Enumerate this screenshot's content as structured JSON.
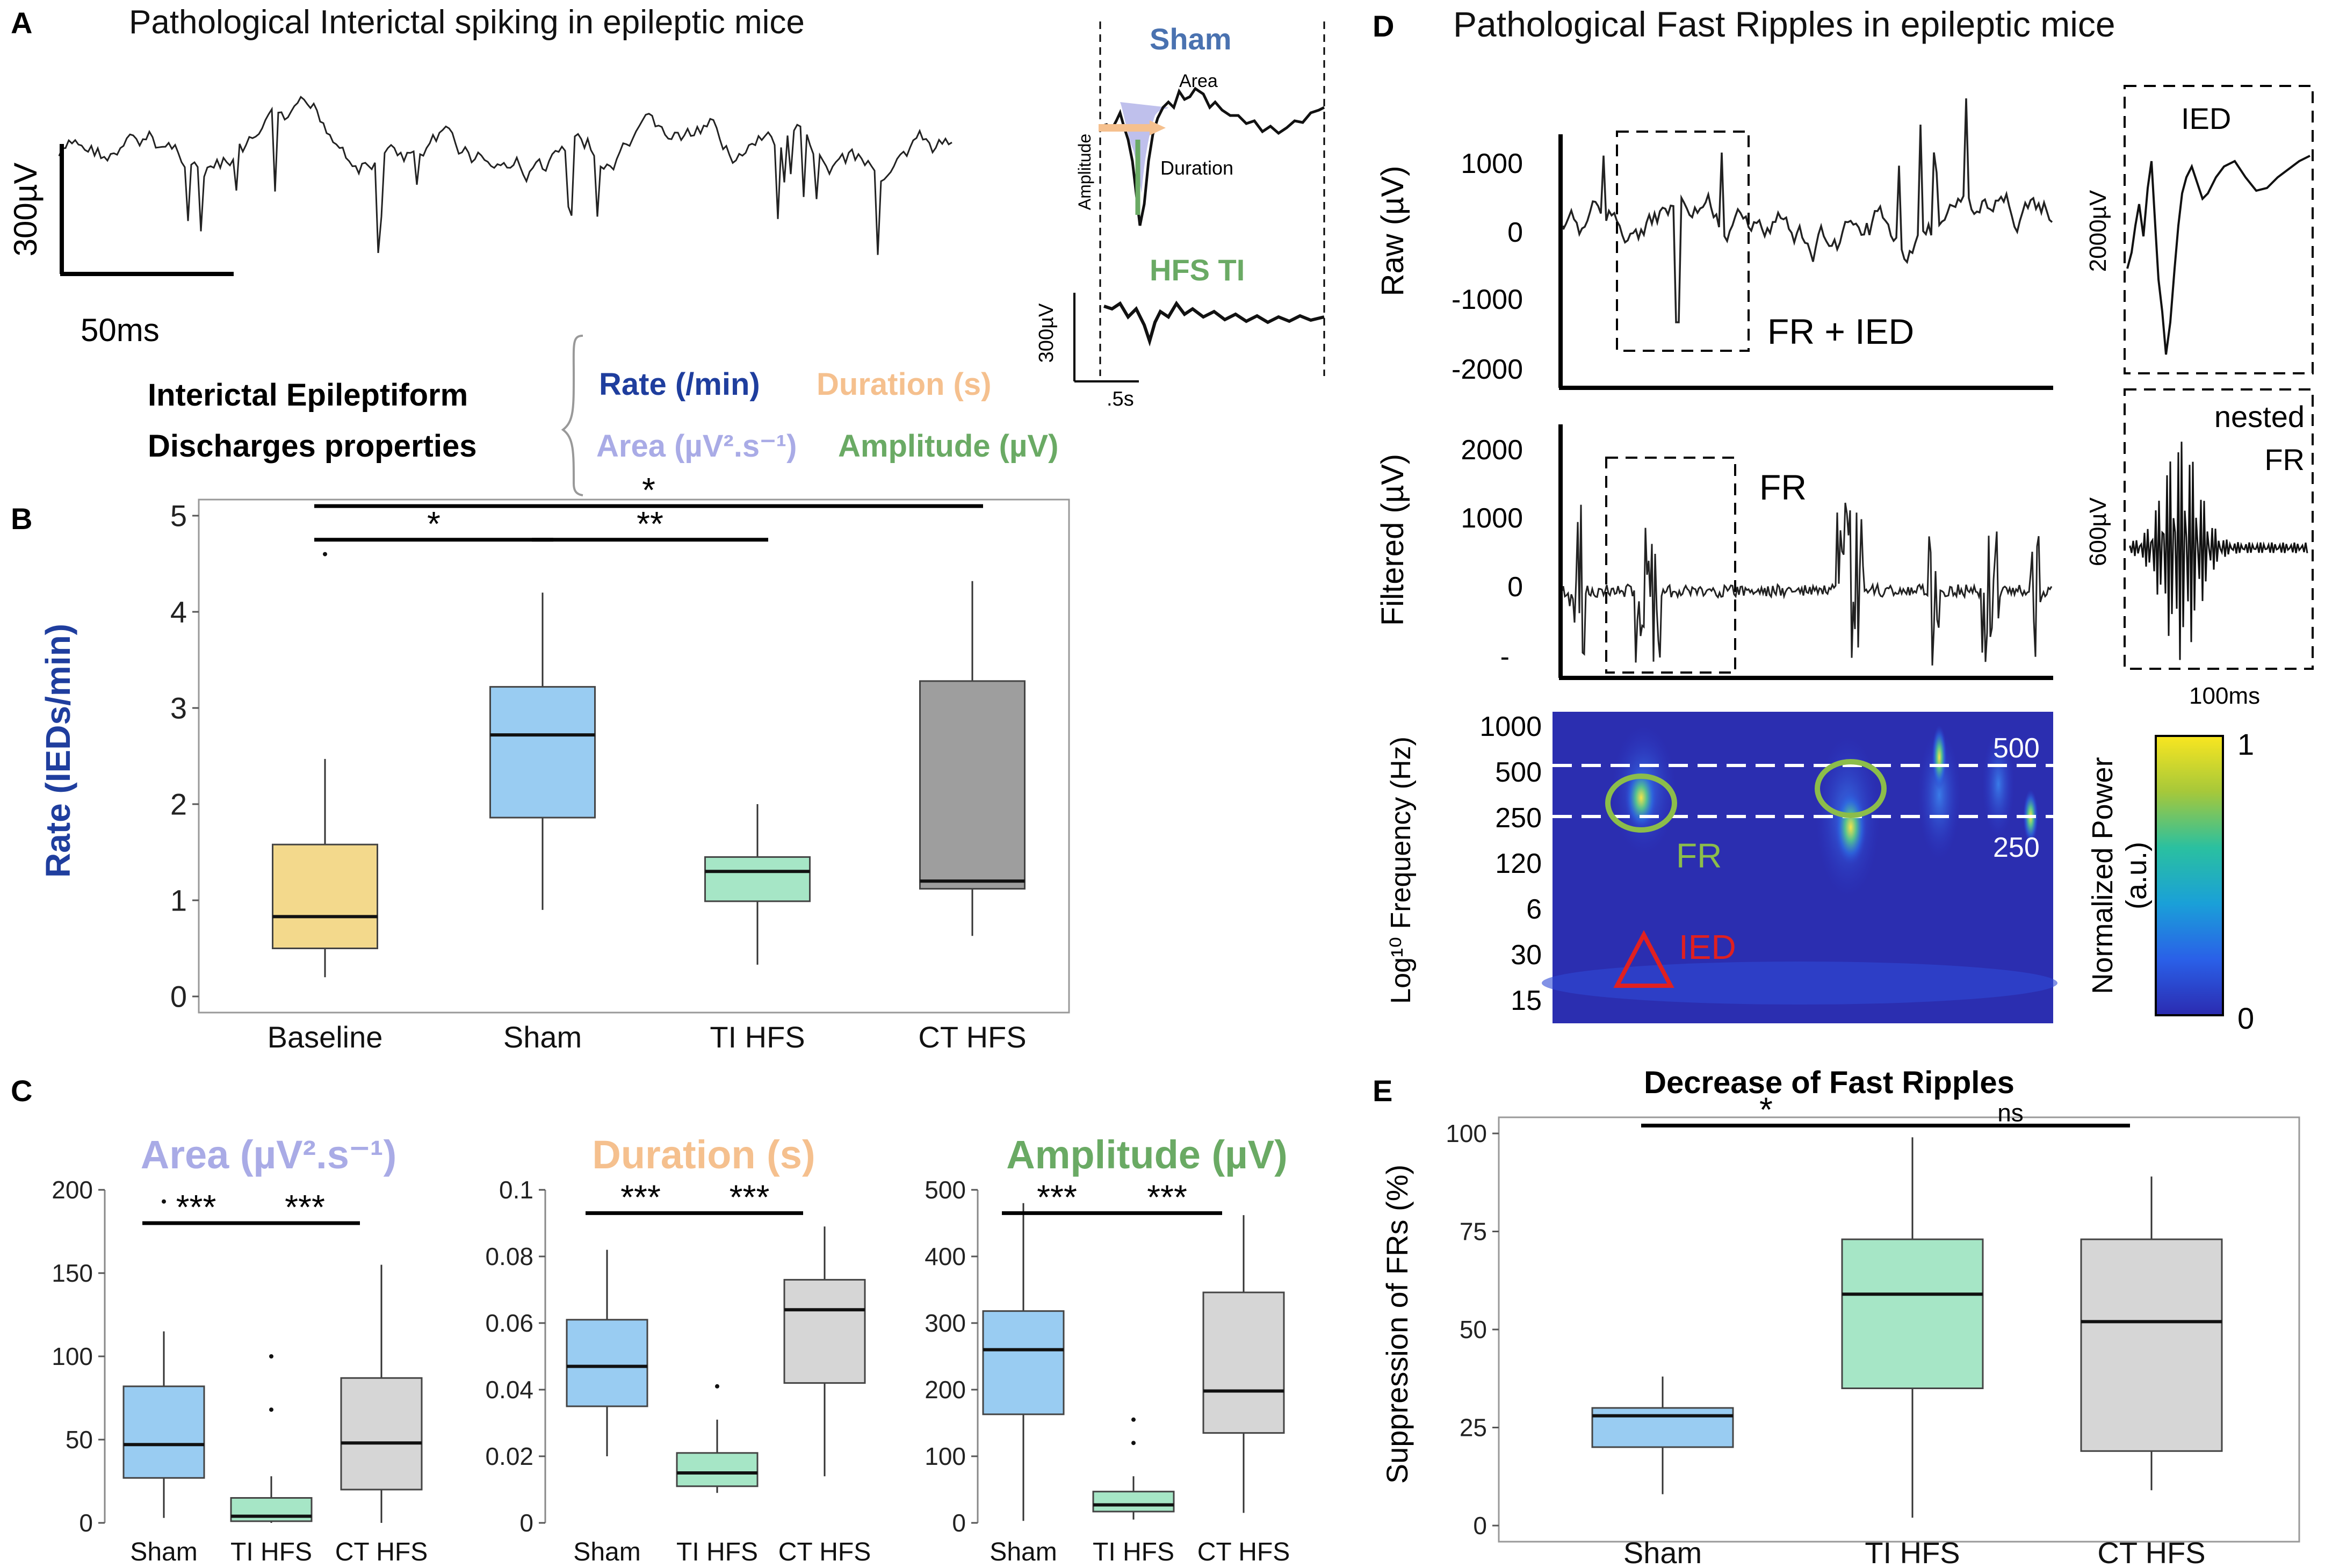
{
  "colors": {
    "sham": "#99ccf2",
    "baseline": "#f3d98c",
    "ti": "#a6e6c6",
    "ct_dark": "#9e9e9e",
    "ct_light": "#d6d6d6",
    "rate": "#1f3e9e",
    "duration": "#f5c08e",
    "area": "#a9abe6",
    "amplitude": "#6aaa64",
    "fr_green": "#8cbd4a",
    "ied_red": "#e02020"
  },
  "panels": {
    "A": "A",
    "B": "B",
    "C": "C",
    "D": "D",
    "E": "E"
  },
  "panelA": {
    "title": "Pathological Interictal spiking in epileptic mice",
    "scale_y": "300µV",
    "scale_x": "50ms",
    "inset_sham": "Sham",
    "inset_area": "Area",
    "inset_duration": "Duration",
    "inset_amplitude": "Amplitude",
    "inset_hfs": "HFS TI",
    "inset_scale_y": "300µV",
    "inset_scale_x": ".5s",
    "ied_line1": "Interictal Epileptiform",
    "ied_line2": "Discharges properties",
    "prop_rate": "Rate (/min)",
    "prop_duration": "Duration (s)",
    "prop_area": "Area (µV².s⁻¹)",
    "prop_amplitude": "Amplitude (µV)"
  },
  "panelD": {
    "title": "Pathological Fast Ripples in epileptic mice",
    "raw_ylabel": "Raw (µV)",
    "raw_ticks": [
      "1000",
      "0",
      "-1000",
      "-2000"
    ],
    "raw_box": "FR + IED",
    "filt_ylabel": "Filtered (µV)",
    "filt_ticks": [
      "2000",
      "1000",
      "0",
      "-"
    ],
    "filt_box": "FR",
    "inset_ied": "IED",
    "inset_ied_scale": "2000µV",
    "inset_fr_1": "nested",
    "inset_fr_2": "FR",
    "inset_fr_scale": "600µV",
    "inset_time": "100ms",
    "spec_ylabel": "Log¹⁰ Frequency (Hz)",
    "spec_ticks": [
      "1000",
      "500",
      "250",
      "120",
      "6",
      "30",
      "15"
    ],
    "line_500": "500",
    "line_250": "250",
    "fr_label": "FR",
    "ied_label": "IED",
    "cbar_label_1": "Normalized Power",
    "cbar_label_2": "(a.u.)",
    "cbar_max": "1",
    "cbar_min": "0"
  },
  "chart_data": [
    {
      "id": "B",
      "type": "box",
      "title": "",
      "ylabel": "Rate (IEDs/min)",
      "ylim": [
        0,
        5
      ],
      "yticks": [
        0,
        1,
        2,
        3,
        4,
        5
      ],
      "categories": [
        "Baseline",
        "Sham",
        "TI HFS",
        "CT HFS"
      ],
      "boxes": [
        {
          "min": 0.2,
          "q1": 0.5,
          "median": 0.83,
          "q3": 1.58,
          "max": 2.47
        },
        {
          "min": 0.9,
          "q1": 1.86,
          "median": 2.72,
          "q3": 3.22,
          "max": 4.2
        },
        {
          "min": 0.33,
          "q1": 0.99,
          "median": 1.3,
          "q3": 1.45,
          "max": 2.0
        },
        {
          "min": 0.63,
          "q1": 1.12,
          "median": 1.2,
          "q3": 3.28,
          "max": 4.32
        }
      ],
      "outliers": [
        {
          "cat": 0,
          "y": 4.6
        }
      ],
      "signif": [
        {
          "from": 0,
          "to": 1,
          "y": 4.75,
          "label": "*"
        },
        {
          "from": 1,
          "to": 2,
          "y": 4.75,
          "label": "**"
        },
        {
          "from": 0,
          "to": 3,
          "y": 5.1,
          "label": "*"
        }
      ]
    },
    {
      "id": "C1",
      "type": "box",
      "title": "Area (µV².s⁻¹)",
      "ylim": [
        0,
        200
      ],
      "yticks": [
        0,
        50,
        100,
        150,
        200
      ],
      "categories": [
        "Sham",
        "TI HFS",
        "CT HFS"
      ],
      "boxes": [
        {
          "min": 3,
          "q1": 27,
          "median": 47,
          "q3": 82,
          "max": 115
        },
        {
          "min": 0,
          "q1": 1,
          "median": 4,
          "q3": 15,
          "max": 28
        },
        {
          "min": 0,
          "q1": 20,
          "median": 48,
          "q3": 87,
          "max": 155
        }
      ],
      "outliers": [
        {
          "cat": 0,
          "y": 193
        },
        {
          "cat": 1,
          "y": 100
        },
        {
          "cat": 1,
          "y": 68
        }
      ],
      "signif": [
        {
          "from": 0,
          "to": 1,
          "y": 180,
          "label": "***"
        },
        {
          "from": 1,
          "to": 2,
          "y": 180,
          "label": "***"
        }
      ]
    },
    {
      "id": "C2",
      "type": "box",
      "title": "Duration (s)",
      "ylim": [
        0,
        0.1
      ],
      "yticks": [
        0,
        0.02,
        0.04,
        0.06,
        0.08,
        0.1
      ],
      "categories": [
        "Sham",
        "TI HFS",
        "CT HFS"
      ],
      "boxes": [
        {
          "min": 0.02,
          "q1": 0.035,
          "median": 0.047,
          "q3": 0.061,
          "max": 0.082
        },
        {
          "min": 0.009,
          "q1": 0.011,
          "median": 0.015,
          "q3": 0.021,
          "max": 0.031
        },
        {
          "min": 0.014,
          "q1": 0.042,
          "median": 0.064,
          "q3": 0.073,
          "max": 0.089
        }
      ],
      "outliers": [
        {
          "cat": 1,
          "y": 0.041
        }
      ],
      "signif": [
        {
          "from": 0,
          "to": 1,
          "y": 0.093,
          "label": "***"
        },
        {
          "from": 1,
          "to": 2,
          "y": 0.093,
          "label": "***"
        }
      ]
    },
    {
      "id": "C3",
      "type": "box",
      "title": "Amplitude (µV)",
      "ylim": [
        0,
        500
      ],
      "yticks": [
        0,
        100,
        200,
        300,
        400,
        500
      ],
      "categories": [
        "Sham",
        "TI HFS",
        "CT HFS"
      ],
      "boxes": [
        {
          "min": 3,
          "q1": 163,
          "median": 260,
          "q3": 318,
          "max": 480
        },
        {
          "min": 5,
          "q1": 17,
          "median": 27,
          "q3": 47,
          "max": 70
        },
        {
          "min": 15,
          "q1": 135,
          "median": 198,
          "q3": 346,
          "max": 462
        }
      ],
      "outliers": [
        {
          "cat": 1,
          "y": 155
        },
        {
          "cat": 1,
          "y": 120
        }
      ],
      "signif": [
        {
          "from": 0,
          "to": 1,
          "y": 465,
          "label": "***"
        },
        {
          "from": 1,
          "to": 2,
          "y": 465,
          "label": "***"
        }
      ]
    },
    {
      "id": "E",
      "type": "box",
      "title": "Decrease of Fast Ripples",
      "ylabel": "Suppression of FRs (%)",
      "ylim": [
        0,
        100
      ],
      "yticks": [
        0,
        25,
        50,
        75,
        100
      ],
      "categories": [
        "Sham",
        "TI HFS",
        "CT HFS"
      ],
      "boxes": [
        {
          "min": 8,
          "q1": 20,
          "median": 28,
          "q3": 30,
          "max": 38
        },
        {
          "min": 2,
          "q1": 35,
          "median": 59,
          "q3": 73,
          "max": 99
        },
        {
          "min": 9,
          "q1": 19,
          "median": 52,
          "q3": 73,
          "max": 89
        }
      ],
      "outliers": [],
      "signif": [
        {
          "from": 0,
          "to": 1,
          "y": 102,
          "label": "*"
        },
        {
          "from": 1,
          "to": 2,
          "y": 102,
          "label": "ns"
        }
      ]
    }
  ]
}
